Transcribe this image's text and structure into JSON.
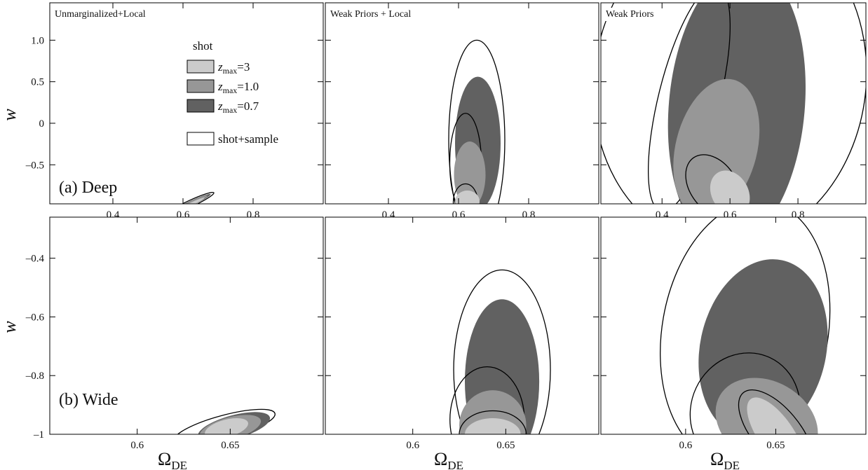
{
  "colors": {
    "zmax_3": "#cbcbcb",
    "zmax_1_0": "#979797",
    "zmax_0_7": "#616161",
    "shot_sample": "#ffffff",
    "outline": "#000000"
  },
  "legend": {
    "heading": "shot",
    "items": [
      {
        "z": "z",
        "sub": "max",
        "value": "=3",
        "color": "#cbcbcb"
      },
      {
        "z": "z",
        "sub": "max",
        "value": "=1.0",
        "color": "#979797"
      },
      {
        "z": "z",
        "sub": "max",
        "value": "=0.7",
        "color": "#616161"
      }
    ],
    "shot_sample_label": "shot+sample"
  },
  "row_labels": {
    "deep": "(a) Deep",
    "wide": "(b) Wide"
  },
  "axis_labels": {
    "y": "w",
    "x_main": "Ω",
    "x_sub": "DE"
  },
  "chart_data": [
    {
      "type": "contour",
      "panel": "deep-unmarginalized-local",
      "title": "Unmarginalized+Local",
      "xlim": [
        0.22,
        1.0
      ],
      "ylim": [
        -0.97,
        1.45
      ],
      "xticks": [
        0.4,
        0.6,
        0.8
      ],
      "yticks": [
        -0.5,
        0,
        0.5,
        1.0
      ],
      "xtick_labels": [
        "0.4",
        "0.6",
        "0.8"
      ],
      "ytick_labels": [
        "–0.5",
        "0",
        "0.5",
        "1.0"
      ],
      "ellipses": [
        {
          "series": "shot+sample",
          "cx": 0.62,
          "cy": -0.97,
          "rx": 0.075,
          "ry": 0.04,
          "angle": -25
        },
        {
          "series": "zmax=0.7",
          "cx": 0.62,
          "cy": -0.97,
          "rx": 0.065,
          "ry": 0.03,
          "angle": -25
        },
        {
          "series": "zmax=1.0",
          "cx": 0.62,
          "cy": -0.97,
          "rx": 0.055,
          "ry": 0.025,
          "angle": -25
        },
        {
          "series": "zmax=3",
          "cx": 0.625,
          "cy": -0.97,
          "rx": 0.04,
          "ry": 0.018,
          "angle": -25
        }
      ]
    },
    {
      "type": "contour",
      "panel": "deep-weak-priors-local",
      "title": "Weak Priors + Local",
      "xlim": [
        0.22,
        1.0
      ],
      "ylim": [
        -0.97,
        1.45
      ],
      "xticks": [
        0.4,
        0.6,
        0.8
      ],
      "yticks": [],
      "xtick_labels": [
        "0.4",
        "0.6",
        "0.8"
      ],
      "ytick_labels": [],
      "ellipses": [
        {
          "series": "shot+sample",
          "cx": 0.652,
          "cy": -0.2,
          "rx": 0.08,
          "ry": 1.2,
          "angle": 0
        },
        {
          "series": "zmax=0.7",
          "cx": 0.655,
          "cy": -0.24,
          "rx": 0.065,
          "ry": 0.8,
          "angle": 0
        },
        {
          "series": "shot+sample-inner",
          "cx": 0.62,
          "cy": -0.48,
          "rx": 0.045,
          "ry": 0.6,
          "angle": 0
        },
        {
          "series": "zmax=1.0",
          "cx": 0.632,
          "cy": -0.62,
          "rx": 0.045,
          "ry": 0.4,
          "angle": 0
        },
        {
          "series": "shot+sample-inner2",
          "cx": 0.62,
          "cy": -0.95,
          "rx": 0.035,
          "ry": 0.22,
          "angle": 0
        },
        {
          "series": "zmax=3",
          "cx": 0.625,
          "cy": -0.94,
          "rx": 0.035,
          "ry": 0.13,
          "angle": 0
        }
      ]
    },
    {
      "type": "contour",
      "panel": "deep-weak-priors",
      "title": "Weak Priors",
      "xlim": [
        0.22,
        1.0
      ],
      "ylim": [
        -0.97,
        1.45
      ],
      "xticks": [
        0.4,
        0.6,
        0.8
      ],
      "yticks": [],
      "xtick_labels": [
        "0.4",
        "0.6",
        "0.8"
      ],
      "ytick_labels": [],
      "ellipses": [
        {
          "series": "shot+sample",
          "cx": 0.6,
          "cy": 0.5,
          "rx": 0.4,
          "ry": 2.0,
          "angle": 8
        },
        {
          "series": "zmax=0.7",
          "cx": 0.62,
          "cy": 0.2,
          "rx": 0.2,
          "ry": 1.7,
          "angle": 5
        },
        {
          "series": "shot+sample-inner",
          "cx": 0.48,
          "cy": 0.3,
          "rx": 0.09,
          "ry": 1.4,
          "angle": 14
        },
        {
          "series": "zmax=1.0",
          "cx": 0.56,
          "cy": -0.3,
          "rx": 0.12,
          "ry": 0.85,
          "angle": 14
        },
        {
          "series": "shot+sample-inner2",
          "cx": 0.55,
          "cy": -0.75,
          "rx": 0.1,
          "ry": 0.28,
          "angle": 55
        },
        {
          "series": "zmax=3",
          "cx": 0.6,
          "cy": -0.84,
          "rx": 0.07,
          "ry": 0.22,
          "angle": 60
        }
      ]
    },
    {
      "type": "contour",
      "panel": "wide-unmarginalized-local",
      "title": "",
      "xlim": [
        0.553,
        0.7
      ],
      "ylim": [
        -1.0,
        -0.26
      ],
      "xticks": [
        0.6,
        0.65
      ],
      "yticks": [
        -1,
        -0.8,
        -0.6,
        -0.4
      ],
      "xtick_labels": [
        "0.6",
        "0.65"
      ],
      "ytick_labels": [
        "–1",
        "–0.8",
        "–0.6",
        "–0.4"
      ],
      "ellipses": [
        {
          "series": "shot+sample",
          "cx": 0.647,
          "cy": -0.975,
          "rx": 0.028,
          "ry": 0.04,
          "angle": -15
        },
        {
          "series": "zmax=0.7",
          "cx": 0.652,
          "cy": -0.975,
          "rx": 0.02,
          "ry": 0.04,
          "angle": -15
        },
        {
          "series": "zmax=1.0",
          "cx": 0.65,
          "cy": -0.98,
          "rx": 0.017,
          "ry": 0.038,
          "angle": -15
        },
        {
          "series": "zmax=3",
          "cx": 0.648,
          "cy": -0.98,
          "rx": 0.012,
          "ry": 0.03,
          "angle": -15
        }
      ]
    },
    {
      "type": "contour",
      "panel": "wide-weak-priors-local",
      "title": "",
      "xlim": [
        0.553,
        0.7
      ],
      "ylim": [
        -1.0,
        -0.26
      ],
      "xticks": [
        0.6,
        0.65
      ],
      "yticks": [],
      "xtick_labels": [
        "0.6",
        "0.65"
      ],
      "ytick_labels": [],
      "ellipses": [
        {
          "series": "shot+sample",
          "cx": 0.648,
          "cy": -0.78,
          "rx": 0.026,
          "ry": 0.34,
          "angle": 0
        },
        {
          "series": "zmax=0.7",
          "cx": 0.648,
          "cy": -0.82,
          "rx": 0.02,
          "ry": 0.28,
          "angle": 0
        },
        {
          "series": "shot+sample-inner",
          "cx": 0.64,
          "cy": -0.95,
          "rx": 0.02,
          "ry": 0.18,
          "angle": 0
        },
        {
          "series": "zmax=1.0",
          "cx": 0.643,
          "cy": -0.97,
          "rx": 0.018,
          "ry": 0.12,
          "angle": 0
        },
        {
          "series": "shot+sample-inner2",
          "cx": 0.643,
          "cy": -1.0,
          "rx": 0.018,
          "ry": 0.08,
          "angle": 0
        },
        {
          "series": "zmax=3",
          "cx": 0.643,
          "cy": -1.0,
          "rx": 0.015,
          "ry": 0.055,
          "angle": 0
        }
      ]
    },
    {
      "type": "contour",
      "panel": "wide-weak-priors",
      "title": "",
      "xlim": [
        0.553,
        0.7
      ],
      "ylim": [
        -1.0,
        -0.26
      ],
      "xticks": [
        0.6,
        0.65
      ],
      "yticks": [],
      "xtick_labels": [
        "0.6",
        "0.65"
      ],
      "ytick_labels": [],
      "ellipses": [
        {
          "series": "shot+sample",
          "cx": 0.633,
          "cy": -0.65,
          "rx": 0.046,
          "ry": 0.45,
          "angle": 10
        },
        {
          "series": "zmax=0.7",
          "cx": 0.643,
          "cy": -0.71,
          "rx": 0.035,
          "ry": 0.31,
          "angle": 12
        },
        {
          "series": "shot+sample-inner",
          "cx": 0.633,
          "cy": -0.92,
          "rx": 0.03,
          "ry": 0.2,
          "angle": 25
        },
        {
          "series": "zmax=1.0",
          "cx": 0.645,
          "cy": -0.96,
          "rx": 0.03,
          "ry": 0.14,
          "angle": 30
        },
        {
          "series": "shot+sample-inner2",
          "cx": 0.65,
          "cy": -0.99,
          "rx": 0.028,
          "ry": 0.08,
          "angle": 50
        },
        {
          "series": "zmax=3",
          "cx": 0.65,
          "cy": -1.0,
          "rx": 0.024,
          "ry": 0.06,
          "angle": 55
        }
      ]
    }
  ]
}
